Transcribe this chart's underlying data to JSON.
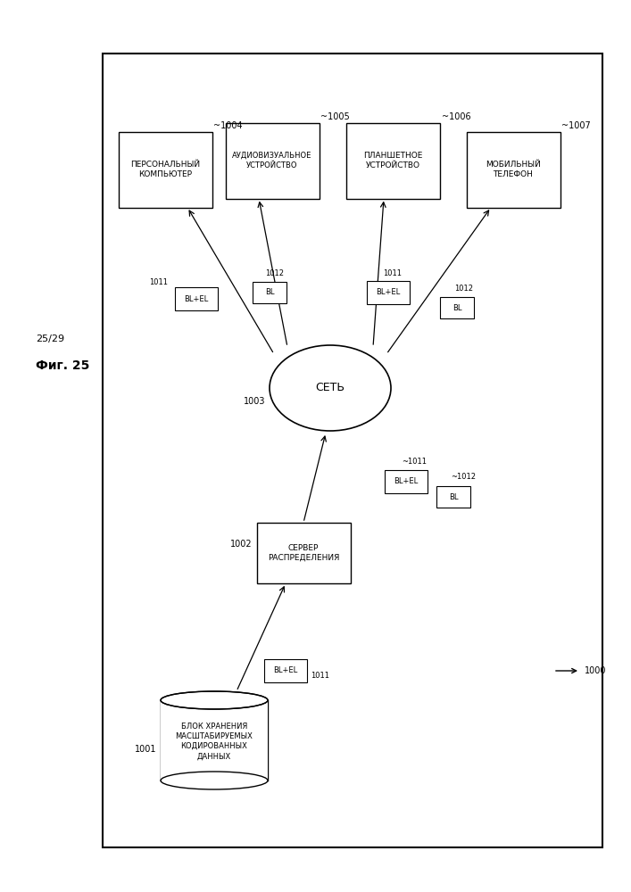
{
  "bg": "#ffffff",
  "subtitle": "25/29",
  "title": "Фиг. 25",
  "ref": "1000",
  "node_ids": {
    "storage": "1001",
    "server": "1002",
    "network": "1003",
    "pc": "~1004",
    "av": "~1005",
    "tablet": "~1006",
    "phone": "~1007"
  },
  "node_labels": {
    "storage": "БЛОК ХРАНЕНИЯ\nМАСШТАБИРУЕМЫХ\nКОДИРОВАННЫХ\nДАННЫХ",
    "server": "СЕРВЕР\nРАСПРЕДЕЛЕНИЯ",
    "network": "СЕТЬ",
    "pc": "ПЕРСОНАЛЬНЫЙ\nКОМПЬЮТЕР",
    "av": "АУДИОВИЗУАЛЬНОЕ\nУСТРОЙСТВО",
    "tablet": "ПЛАНШЕТНОЕ\nУСТРОЙСТВО",
    "phone": "МОБИЛЬНЫЙ\nТЕЛЕФОН"
  }
}
